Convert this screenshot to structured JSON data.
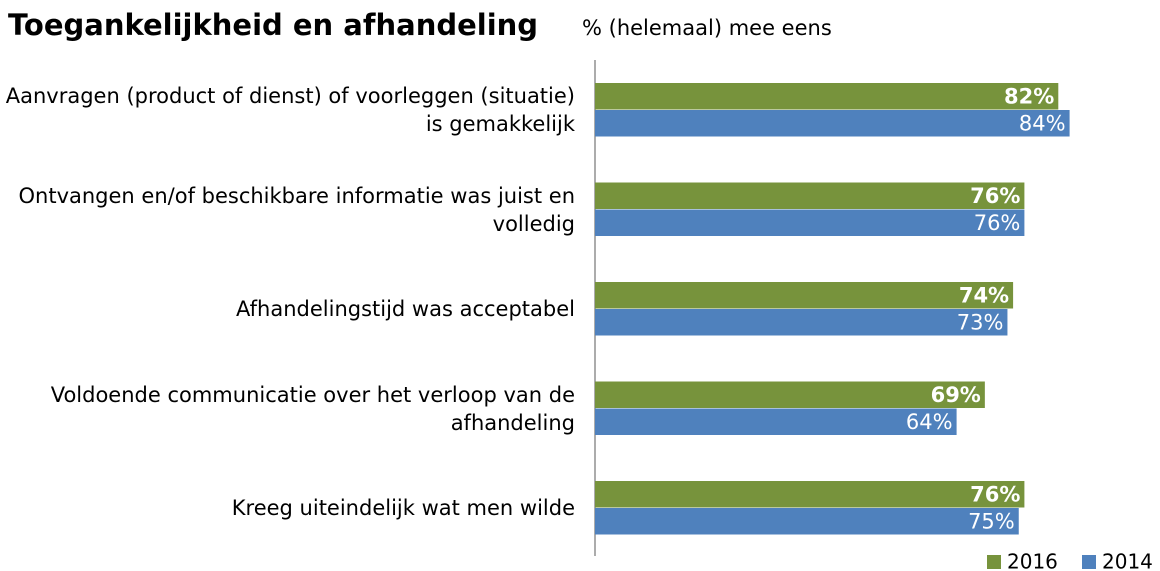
{
  "chart_data": {
    "type": "barh",
    "title": "Toegankelijkheid en afhandeling",
    "subtitle": "% (helemaal) mee eens",
    "categories": [
      "Aanvragen (product of dienst) of voorleggen (situatie) is gemakkelijk",
      "Ontvangen en/of beschikbare informatie was juist en volledig",
      "Afhandelingstijd was acceptabel",
      "Voldoende communicatie over het verloop van de afhandeling",
      "Kreeg uiteindelijk wat men wilde"
    ],
    "series": [
      {
        "name": "2016",
        "color": "#77933c",
        "values": [
          82,
          76,
          74,
          69,
          76
        ],
        "value_labels": [
          "82%",
          "76%",
          "74%",
          "69%",
          "76%"
        ]
      },
      {
        "name": "2014",
        "color": "#4f81bd",
        "values": [
          84,
          76,
          73,
          64,
          75
        ],
        "value_labels": [
          "84%",
          "76%",
          "73%",
          "64%",
          "75%"
        ]
      }
    ],
    "xlim": [
      0,
      100
    ],
    "legend": "bottom-right"
  }
}
